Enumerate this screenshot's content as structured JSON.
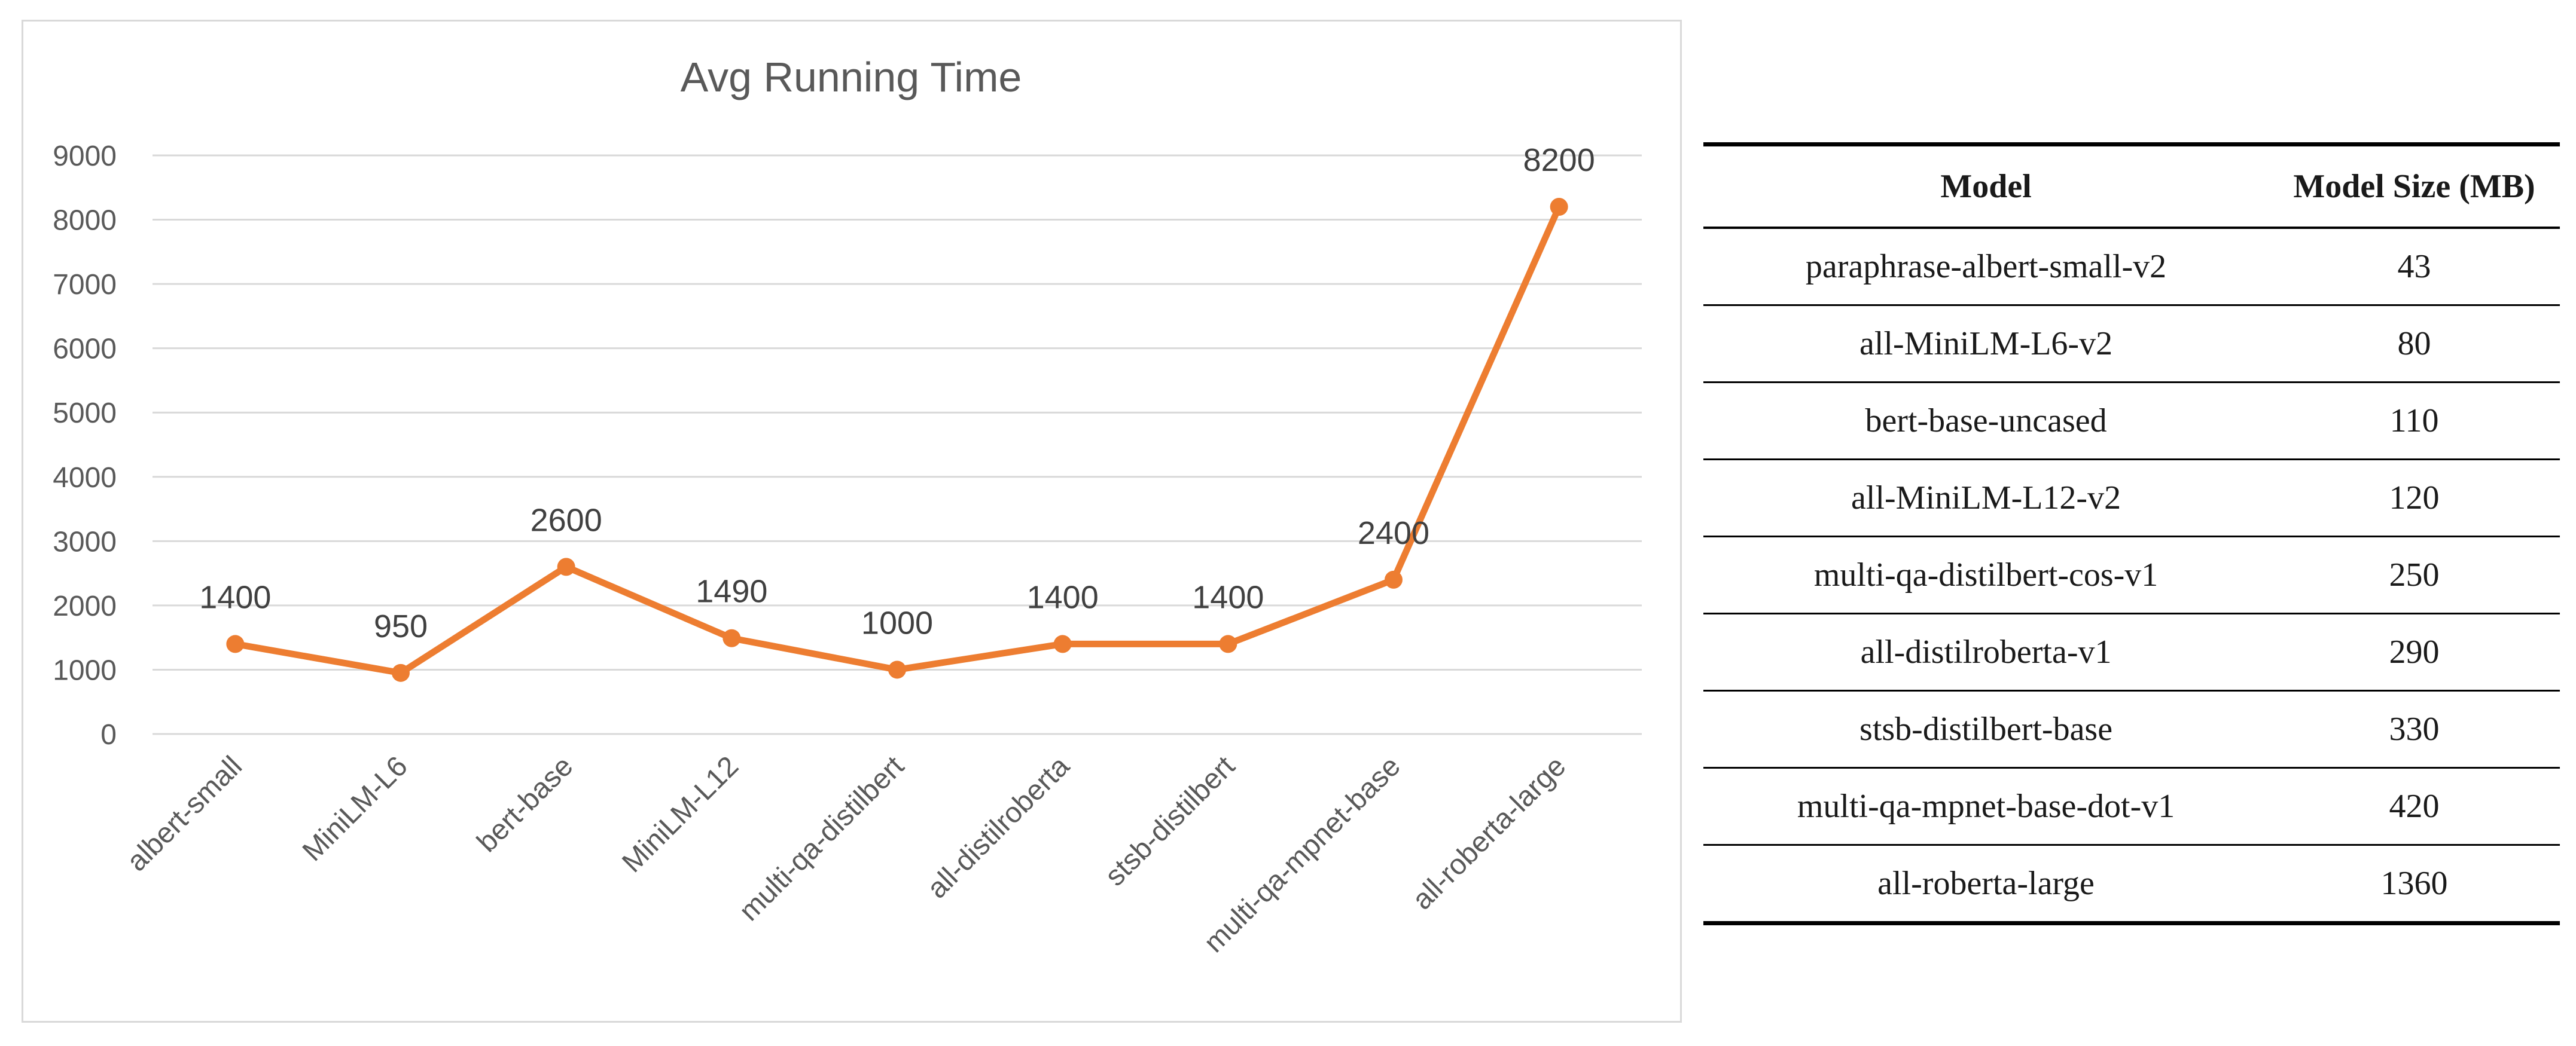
{
  "chart_data": {
    "type": "line",
    "title": "Avg Running Time",
    "categories": [
      "albert-small",
      "MiniLM-L6",
      "bert-base",
      "MiniLM-L12",
      "multi-qa-distilbert",
      "all-distilroberta",
      "stsb-distilbert",
      "multi-qa-mpnet-base",
      "all-roberta-large"
    ],
    "series": [
      {
        "values": [
          1400,
          950,
          2600,
          1490,
          1000,
          1400,
          1400,
          2400,
          8200
        ]
      }
    ],
    "data_labels": [
      "1400",
      "950",
      "2600",
      "1490",
      "1000",
      "1400",
      "1400",
      "2400",
      "8200"
    ],
    "ylim": [
      0,
      9000
    ],
    "yticks": [
      0,
      1000,
      2000,
      3000,
      4000,
      5000,
      6000,
      7000,
      8000,
      9000
    ],
    "grid": true,
    "legend": "none",
    "xlabel": "",
    "ylabel": "",
    "line_color": "#ed7d31",
    "grid_color": "#d9d9d9",
    "text_color": "#595959"
  },
  "table": {
    "headers": [
      "Model",
      "Model Size (MB)"
    ],
    "rows": [
      [
        "paraphrase-albert-small-v2",
        "43"
      ],
      [
        "all-MiniLM-L6-v2",
        "80"
      ],
      [
        "bert-base-uncased",
        "110"
      ],
      [
        "all-MiniLM-L12-v2",
        "120"
      ],
      [
        "multi-qa-distilbert-cos-v1",
        "250"
      ],
      [
        "all-distilroberta-v1",
        "290"
      ],
      [
        "stsb-distilbert-base",
        "330"
      ],
      [
        "multi-qa-mpnet-base-dot-v1",
        "420"
      ],
      [
        "all-roberta-large",
        "1360"
      ]
    ]
  }
}
